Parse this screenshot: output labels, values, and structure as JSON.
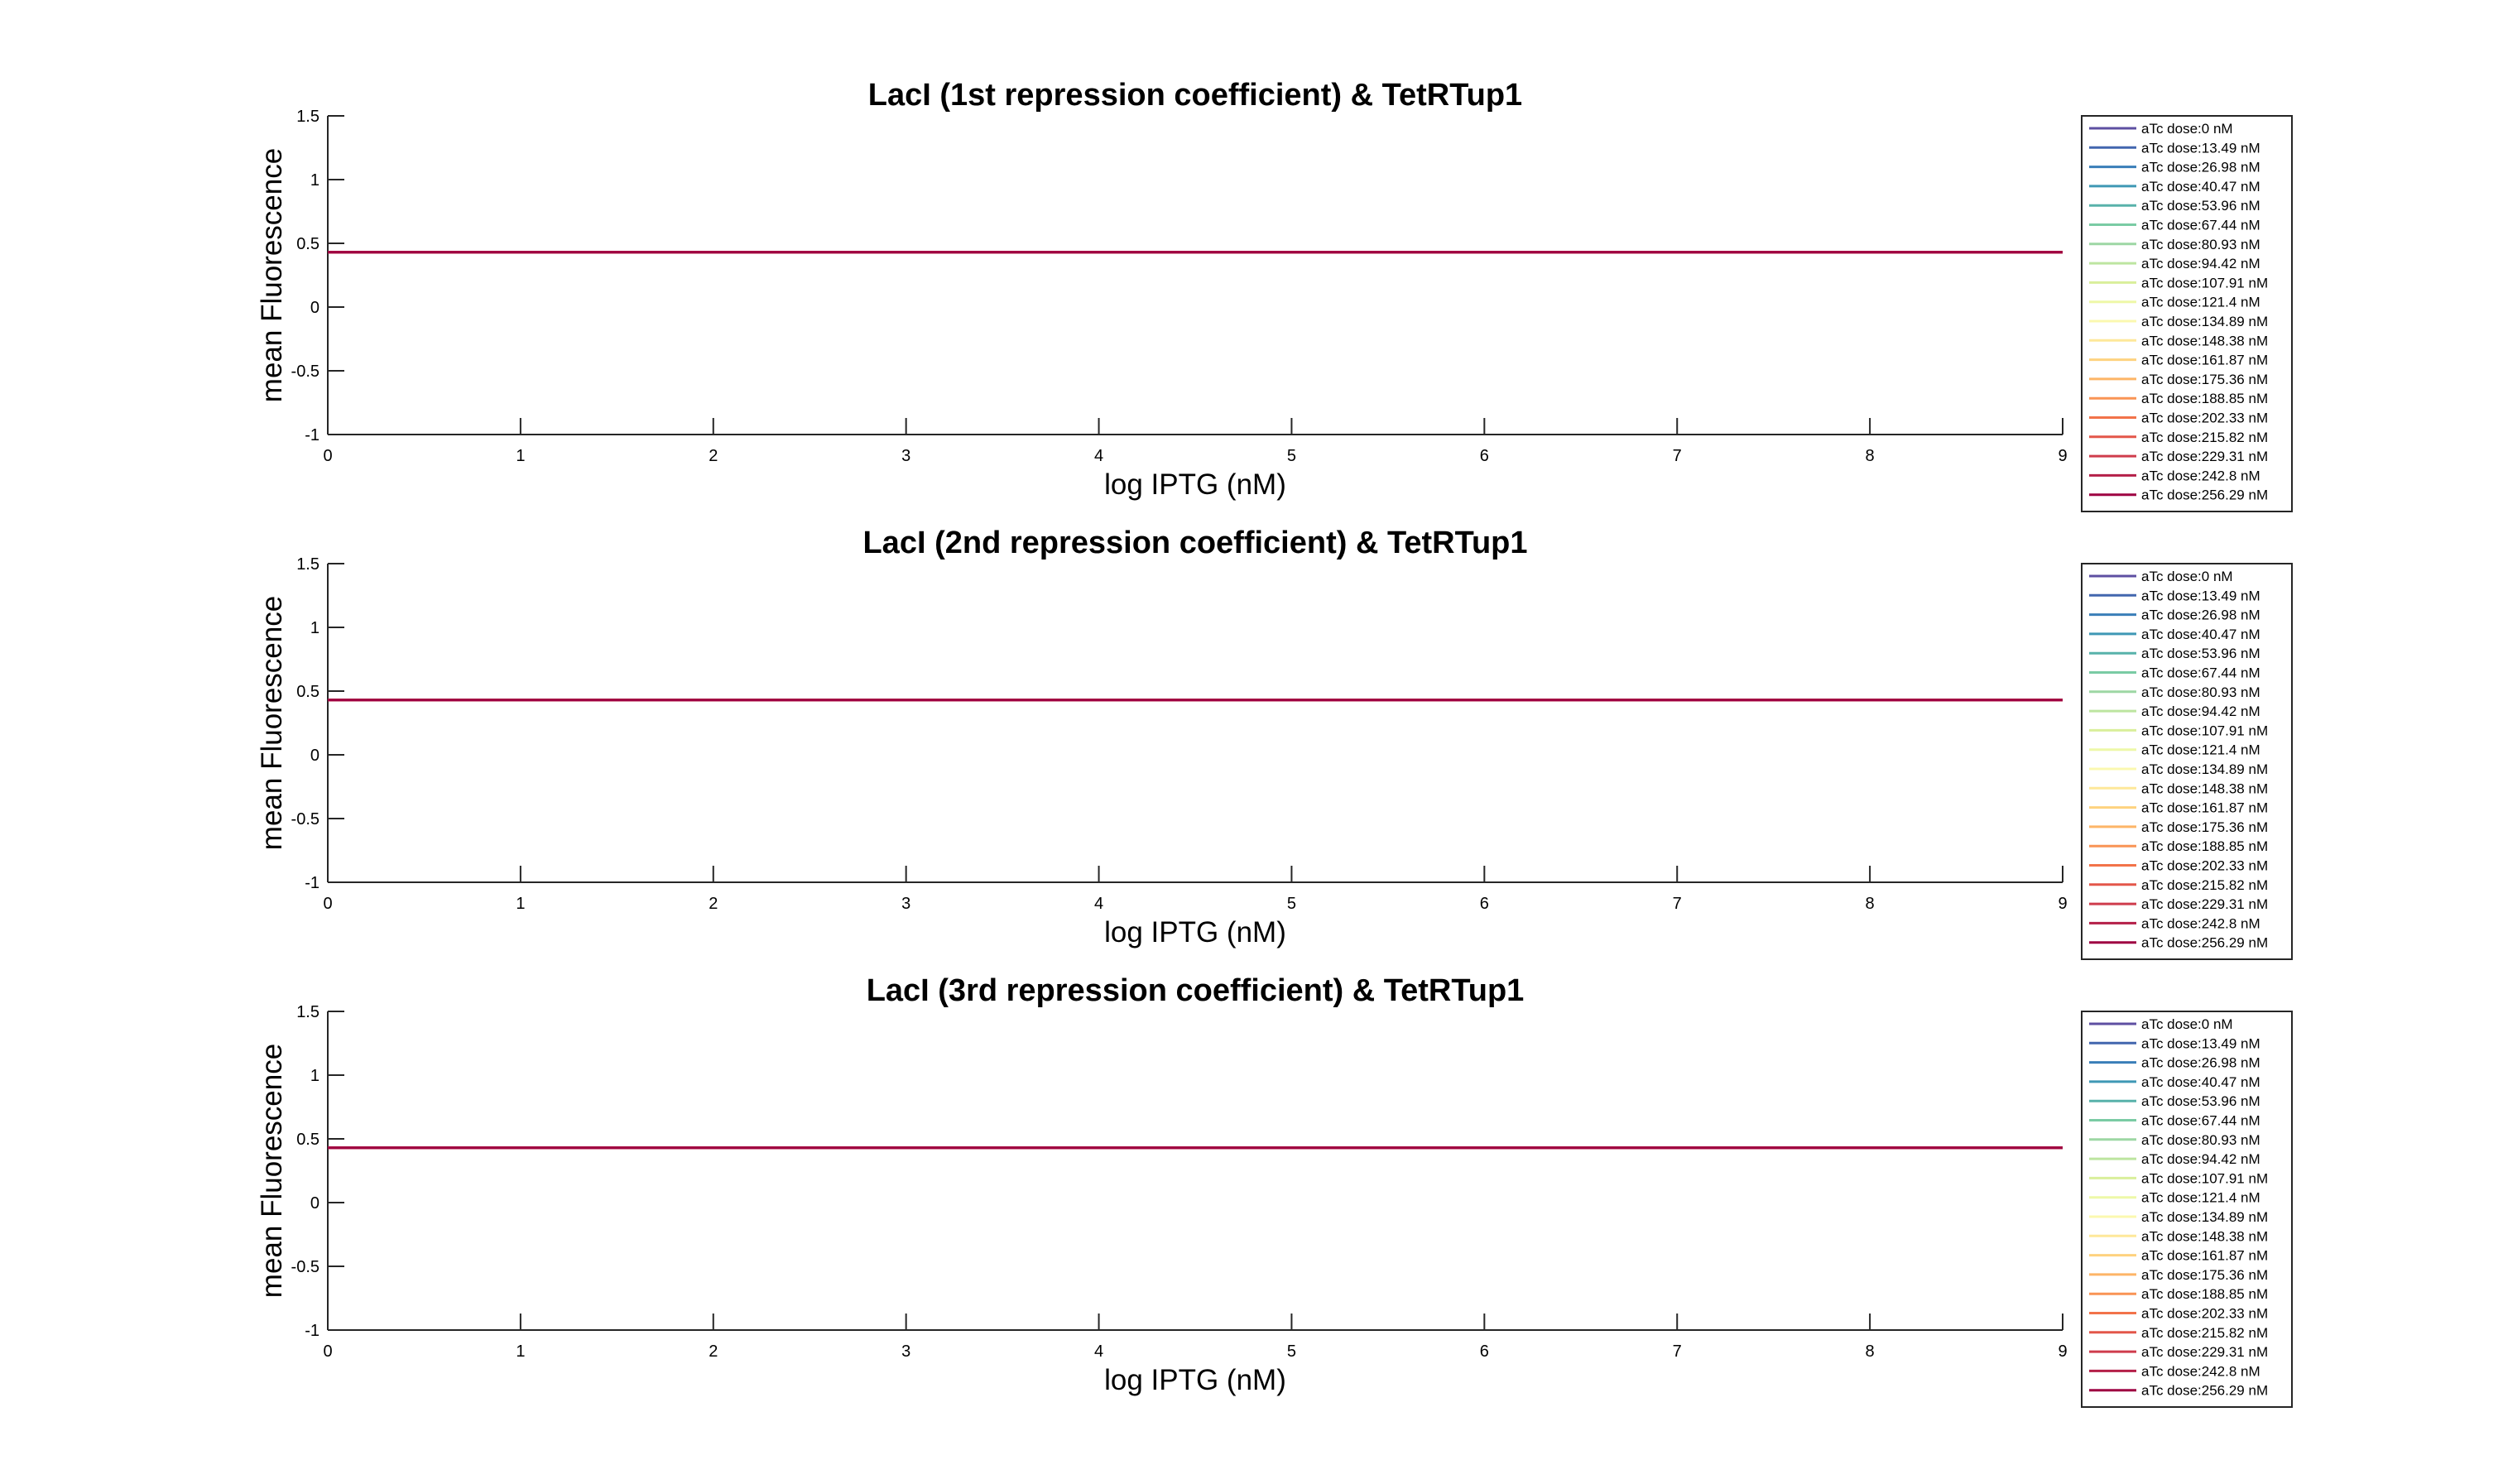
{
  "figure": {
    "background": "#ffffff",
    "axis_color": "#262626"
  },
  "chart_data": [
    {
      "type": "line",
      "title": "LacI (1st repression coefficient) & TetRTup1",
      "xlabel": "log IPTG (nM)",
      "ylabel": "mean Fluorescence",
      "xlim": [
        0,
        9
      ],
      "ylim": [
        -1,
        1.5
      ],
      "xticks": [
        "0",
        "1",
        "2",
        "3",
        "4",
        "5",
        "6",
        "7",
        "8",
        "9"
      ],
      "yticks": [
        "-1",
        "-0.5",
        "0",
        "0.5",
        "1",
        "1.5"
      ],
      "grid": false,
      "legend_position": "right-outside",
      "x": [
        0,
        9
      ],
      "series": [
        {
          "name": "aTc dose:0 nM",
          "color": "#5e4fa2",
          "values": [
            0.43,
            0.43
          ]
        },
        {
          "name": "aTc dose:13.49 nM",
          "color": "#4266ae",
          "values": [
            0.43,
            0.43
          ]
        },
        {
          "name": "aTc dose:26.98 nM",
          "color": "#3a7eb8",
          "values": [
            0.43,
            0.43
          ]
        },
        {
          "name": "aTc dose:40.47 nM",
          "color": "#3f98b5",
          "values": [
            0.43,
            0.43
          ]
        },
        {
          "name": "aTc dose:53.96 nM",
          "color": "#58b2aa",
          "values": [
            0.43,
            0.43
          ]
        },
        {
          "name": "aTc dose:67.44 nM",
          "color": "#7acba4",
          "values": [
            0.43,
            0.43
          ]
        },
        {
          "name": "aTc dose:80.93 nM",
          "color": "#9dd7a4",
          "values": [
            0.43,
            0.43
          ]
        },
        {
          "name": "aTc dose:94.42 nM",
          "color": "#bde5a0",
          "values": [
            0.43,
            0.43
          ]
        },
        {
          "name": "aTc dose:107.91 nM",
          "color": "#d9ef9b",
          "values": [
            0.43,
            0.43
          ]
        },
        {
          "name": "aTc dose:121.4 nM",
          "color": "#eef8a8",
          "values": [
            0.43,
            0.43
          ]
        },
        {
          "name": "aTc dose:134.89 nM",
          "color": "#fbf8b0",
          "values": [
            0.43,
            0.43
          ]
        },
        {
          "name": "aTc dose:148.38 nM",
          "color": "#fee89a",
          "values": [
            0.43,
            0.43
          ]
        },
        {
          "name": "aTc dose:161.87 nM",
          "color": "#fed27f",
          "values": [
            0.43,
            0.43
          ]
        },
        {
          "name": "aTc dose:175.36 nM",
          "color": "#fdb567",
          "values": [
            0.43,
            0.43
          ]
        },
        {
          "name": "aTc dose:188.85 nM",
          "color": "#f99455",
          "values": [
            0.43,
            0.43
          ]
        },
        {
          "name": "aTc dose:202.33 nM",
          "color": "#f2734a",
          "values": [
            0.43,
            0.43
          ]
        },
        {
          "name": "aTc dose:215.82 nM",
          "color": "#e3574a",
          "values": [
            0.43,
            0.43
          ]
        },
        {
          "name": "aTc dose:229.31 nM",
          "color": "#cf3c4c",
          "values": [
            0.43,
            0.43
          ]
        },
        {
          "name": "aTc dose:242.8 nM",
          "color": "#b41f48",
          "values": [
            0.43,
            0.43
          ]
        },
        {
          "name": "aTc dose:256.29 nM",
          "color": "#9e0142",
          "values": [
            0.43,
            0.43
          ]
        }
      ]
    },
    {
      "type": "line",
      "title": "LacI (2nd repression coefficient) & TetRTup1",
      "xlabel": "log IPTG (nM)",
      "ylabel": "mean Fluorescence",
      "xlim": [
        0,
        9
      ],
      "ylim": [
        -1,
        1.5
      ],
      "xticks": [
        "0",
        "1",
        "2",
        "3",
        "4",
        "5",
        "6",
        "7",
        "8",
        "9"
      ],
      "yticks": [
        "-1",
        "-0.5",
        "0",
        "0.5",
        "1",
        "1.5"
      ],
      "grid": false,
      "legend_position": "right-outside",
      "x": [
        0,
        9
      ],
      "series": [
        {
          "name": "aTc dose:0 nM",
          "color": "#5e4fa2",
          "values": [
            0.43,
            0.43
          ]
        },
        {
          "name": "aTc dose:13.49 nM",
          "color": "#4266ae",
          "values": [
            0.43,
            0.43
          ]
        },
        {
          "name": "aTc dose:26.98 nM",
          "color": "#3a7eb8",
          "values": [
            0.43,
            0.43
          ]
        },
        {
          "name": "aTc dose:40.47 nM",
          "color": "#3f98b5",
          "values": [
            0.43,
            0.43
          ]
        },
        {
          "name": "aTc dose:53.96 nM",
          "color": "#58b2aa",
          "values": [
            0.43,
            0.43
          ]
        },
        {
          "name": "aTc dose:67.44 nM",
          "color": "#7acba4",
          "values": [
            0.43,
            0.43
          ]
        },
        {
          "name": "aTc dose:80.93 nM",
          "color": "#9dd7a4",
          "values": [
            0.43,
            0.43
          ]
        },
        {
          "name": "aTc dose:94.42 nM",
          "color": "#bde5a0",
          "values": [
            0.43,
            0.43
          ]
        },
        {
          "name": "aTc dose:107.91 nM",
          "color": "#d9ef9b",
          "values": [
            0.43,
            0.43
          ]
        },
        {
          "name": "aTc dose:121.4 nM",
          "color": "#eef8a8",
          "values": [
            0.43,
            0.43
          ]
        },
        {
          "name": "aTc dose:134.89 nM",
          "color": "#fbf8b0",
          "values": [
            0.43,
            0.43
          ]
        },
        {
          "name": "aTc dose:148.38 nM",
          "color": "#fee89a",
          "values": [
            0.43,
            0.43
          ]
        },
        {
          "name": "aTc dose:161.87 nM",
          "color": "#fed27f",
          "values": [
            0.43,
            0.43
          ]
        },
        {
          "name": "aTc dose:175.36 nM",
          "color": "#fdb567",
          "values": [
            0.43,
            0.43
          ]
        },
        {
          "name": "aTc dose:188.85 nM",
          "color": "#f99455",
          "values": [
            0.43,
            0.43
          ]
        },
        {
          "name": "aTc dose:202.33 nM",
          "color": "#f2734a",
          "values": [
            0.43,
            0.43
          ]
        },
        {
          "name": "aTc dose:215.82 nM",
          "color": "#e3574a",
          "values": [
            0.43,
            0.43
          ]
        },
        {
          "name": "aTc dose:229.31 nM",
          "color": "#cf3c4c",
          "values": [
            0.43,
            0.43
          ]
        },
        {
          "name": "aTc dose:242.8 nM",
          "color": "#b41f48",
          "values": [
            0.43,
            0.43
          ]
        },
        {
          "name": "aTc dose:256.29 nM",
          "color": "#9e0142",
          "values": [
            0.43,
            0.43
          ]
        }
      ]
    },
    {
      "type": "line",
      "title": "LacI (3rd repression coefficient) & TetRTup1",
      "xlabel": "log IPTG (nM)",
      "ylabel": "mean Fluorescence",
      "xlim": [
        0,
        9
      ],
      "ylim": [
        -1,
        1.5
      ],
      "xticks": [
        "0",
        "1",
        "2",
        "3",
        "4",
        "5",
        "6",
        "7",
        "8",
        "9"
      ],
      "yticks": [
        "-1",
        "-0.5",
        "0",
        "0.5",
        "1",
        "1.5"
      ],
      "grid": false,
      "legend_position": "right-outside",
      "x": [
        0,
        9
      ],
      "series": [
        {
          "name": "aTc dose:0 nM",
          "color": "#5e4fa2",
          "values": [
            0.43,
            0.43
          ]
        },
        {
          "name": "aTc dose:13.49 nM",
          "color": "#4266ae",
          "values": [
            0.43,
            0.43
          ]
        },
        {
          "name": "aTc dose:26.98 nM",
          "color": "#3a7eb8",
          "values": [
            0.43,
            0.43
          ]
        },
        {
          "name": "aTc dose:40.47 nM",
          "color": "#3f98b5",
          "values": [
            0.43,
            0.43
          ]
        },
        {
          "name": "aTc dose:53.96 nM",
          "color": "#58b2aa",
          "values": [
            0.43,
            0.43
          ]
        },
        {
          "name": "aTc dose:67.44 nM",
          "color": "#7acba4",
          "values": [
            0.43,
            0.43
          ]
        },
        {
          "name": "aTc dose:80.93 nM",
          "color": "#9dd7a4",
          "values": [
            0.43,
            0.43
          ]
        },
        {
          "name": "aTc dose:94.42 nM",
          "color": "#bde5a0",
          "values": [
            0.43,
            0.43
          ]
        },
        {
          "name": "aTc dose:107.91 nM",
          "color": "#d9ef9b",
          "values": [
            0.43,
            0.43
          ]
        },
        {
          "name": "aTc dose:121.4 nM",
          "color": "#eef8a8",
          "values": [
            0.43,
            0.43
          ]
        },
        {
          "name": "aTc dose:134.89 nM",
          "color": "#fbf8b0",
          "values": [
            0.43,
            0.43
          ]
        },
        {
          "name": "aTc dose:148.38 nM",
          "color": "#fee89a",
          "values": [
            0.43,
            0.43
          ]
        },
        {
          "name": "aTc dose:161.87 nM",
          "color": "#fed27f",
          "values": [
            0.43,
            0.43
          ]
        },
        {
          "name": "aTc dose:175.36 nM",
          "color": "#fdb567",
          "values": [
            0.43,
            0.43
          ]
        },
        {
          "name": "aTc dose:188.85 nM",
          "color": "#f99455",
          "values": [
            0.43,
            0.43
          ]
        },
        {
          "name": "aTc dose:202.33 nM",
          "color": "#f2734a",
          "values": [
            0.43,
            0.43
          ]
        },
        {
          "name": "aTc dose:215.82 nM",
          "color": "#e3574a",
          "values": [
            0.43,
            0.43
          ]
        },
        {
          "name": "aTc dose:229.31 nM",
          "color": "#cf3c4c",
          "values": [
            0.43,
            0.43
          ]
        },
        {
          "name": "aTc dose:242.8 nM",
          "color": "#b41f48",
          "values": [
            0.43,
            0.43
          ]
        },
        {
          "name": "aTc dose:256.29 nM",
          "color": "#9e0142",
          "values": [
            0.43,
            0.43
          ]
        }
      ]
    }
  ]
}
